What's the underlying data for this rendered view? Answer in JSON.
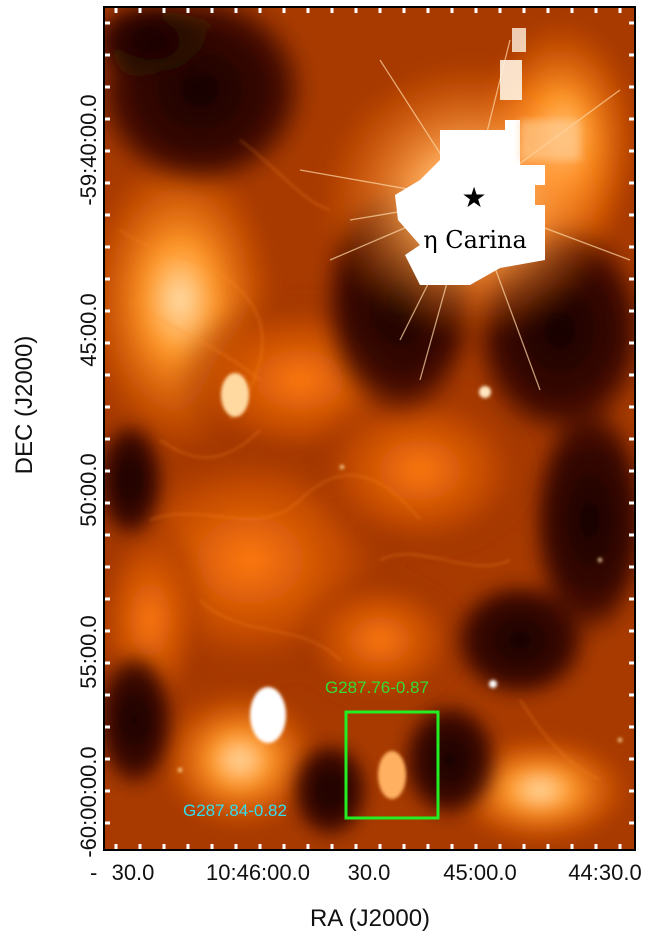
{
  "figure": {
    "x_axis_title": "RA (J2000)",
    "y_axis_title": "DEC (J2000)",
    "x_ticks": [
      "30.0",
      "10:46:00.0",
      "30.0",
      "45:00.0",
      "44:30.0"
    ],
    "y_ticks": [
      "-60:00:00.0",
      "55:00.0",
      "50:00.0",
      "45:00.0",
      "-59:40:00.0"
    ],
    "y_ticks_extra": [
      "-60:00:00.0"
    ],
    "star": {
      "symbol": "★",
      "label": "η Carina"
    },
    "regions": [
      {
        "label": "G287.76-0.87",
        "color": "#33dd33"
      },
      {
        "label": "G287.84-0.82",
        "color": "#33ddee"
      }
    ],
    "colors": {
      "background_dark": "#1a0500",
      "nebula_mid": "#c24a00",
      "nebula_bright": "#ff8a1a",
      "saturated": "#ffffff",
      "box": "#22ee22"
    }
  }
}
